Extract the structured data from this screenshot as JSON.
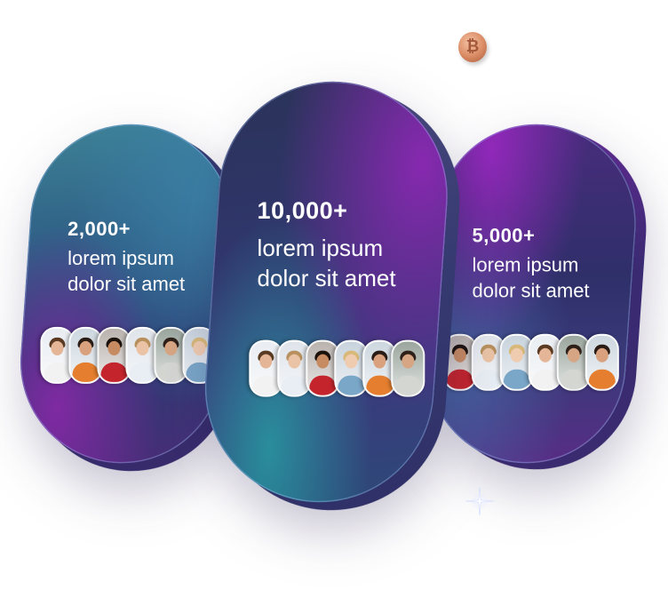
{
  "cards": [
    {
      "stat": "2,000+",
      "line1": "lorem ipsum",
      "line2": "dolor sit amet",
      "avatar_count": 6
    },
    {
      "stat": "10,000+",
      "line1": "lorem ipsum",
      "line2": "dolor sit amet",
      "avatar_count": 6
    },
    {
      "stat": "5,000+",
      "line1": "lorem ipsum",
      "line2": "dolor sit amet",
      "avatar_count": 6
    }
  ],
  "decor": {
    "coin_icon": "bitcoin-coin-icon",
    "coin_glyph": "₿",
    "sparkle_icon": "sparkle-icon"
  },
  "colors": {
    "card_teal": "#2f7d8a",
    "card_navy": "#262f5e",
    "card_purple": "#7a2fa8",
    "text": "#ffffff",
    "coin": "#d98a63"
  }
}
